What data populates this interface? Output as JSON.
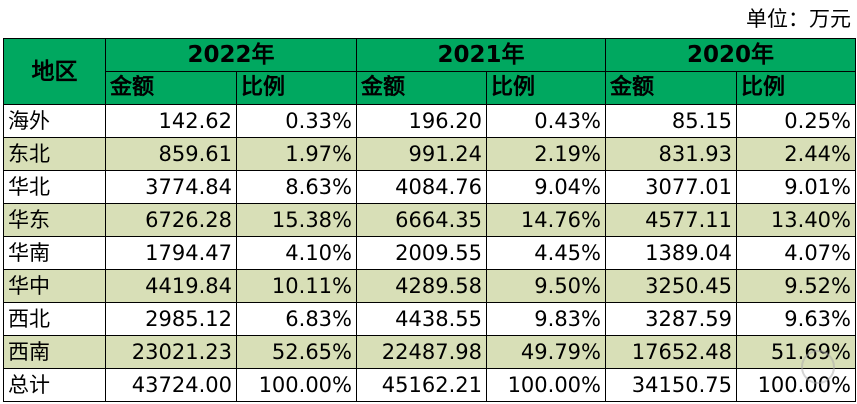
{
  "unit_label": "单位：万元",
  "header": {
    "region": "地区",
    "years": [
      "2022年",
      "2021年",
      "2020年"
    ],
    "amount": "金额",
    "ratio": "比例"
  },
  "rows": [
    {
      "region": "海外",
      "v": [
        "142.62",
        "0.33%",
        "196.20",
        "0.43%",
        "85.15",
        "0.25%"
      ]
    },
    {
      "region": "东北",
      "v": [
        "859.61",
        "1.97%",
        "991.24",
        "2.19%",
        "831.93",
        "2.44%"
      ]
    },
    {
      "region": "华北",
      "v": [
        "3774.84",
        "8.63%",
        "4084.76",
        "9.04%",
        "3077.01",
        "9.01%"
      ]
    },
    {
      "region": "华东",
      "v": [
        "6726.28",
        "15.38%",
        "6664.35",
        "14.76%",
        "4577.11",
        "13.40%"
      ]
    },
    {
      "region": "华南",
      "v": [
        "1794.47",
        "4.10%",
        "2009.55",
        "4.45%",
        "1389.04",
        "4.07%"
      ]
    },
    {
      "region": "华中",
      "v": [
        "4419.84",
        "10.11%",
        "4289.58",
        "9.50%",
        "3250.45",
        "9.52%"
      ]
    },
    {
      "region": "西北",
      "v": [
        "2985.12",
        "6.83%",
        "4438.55",
        "9.83%",
        "3287.59",
        "9.63%"
      ]
    },
    {
      "region": "西南",
      "v": [
        "23021.23",
        "52.65%",
        "22487.98",
        "49.79%",
        "17652.48",
        "51.69%"
      ]
    },
    {
      "region": "总计",
      "v": [
        "43724.00",
        "100.00%",
        "45162.21",
        "100.00%",
        "34150.75",
        "100.00%"
      ]
    }
  ],
  "colors": {
    "header_bg": "#00a860",
    "alt_row_bg": "#d8dfb7"
  }
}
